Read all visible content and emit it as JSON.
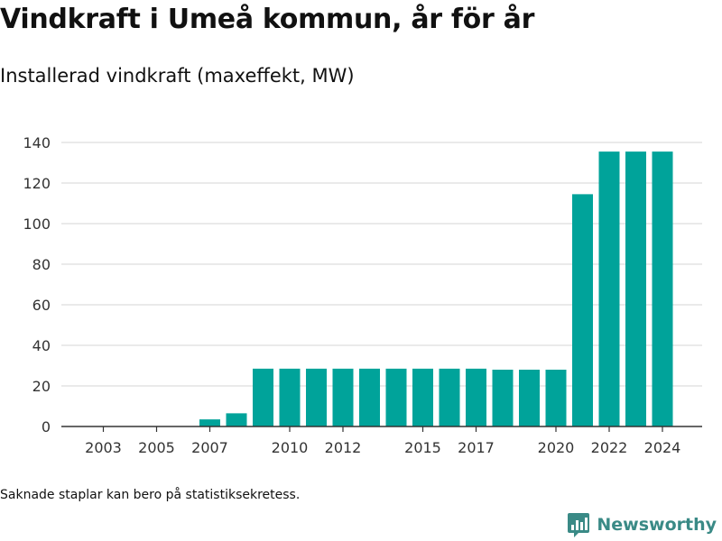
{
  "title": "Vindkraft i Umeå kommun, år för år",
  "subtitle": "Installerad vindkraft (maxeffekt, MW)",
  "footnote": "Saknade staplar kan bero på statistiksekretess.",
  "brand": "Newsworthy",
  "colors": {
    "bar": "#00a39a",
    "grid": "#dddddd",
    "axis": "#333333",
    "brand": "#3a8a86"
  },
  "chart_data": {
    "type": "bar",
    "x": [
      2002,
      2003,
      2004,
      2005,
      2006,
      2007,
      2008,
      2009,
      2010,
      2011,
      2012,
      2013,
      2014,
      2015,
      2016,
      2017,
      2018,
      2019,
      2020,
      2021,
      2022,
      2023,
      2024
    ],
    "values": [
      0,
      0,
      0,
      0,
      0,
      3.5,
      6.5,
      28.5,
      28.5,
      28.5,
      28.5,
      28.5,
      28.5,
      28.5,
      28.5,
      28.5,
      28,
      28,
      28,
      114.5,
      135.5,
      135.5,
      135.5
    ],
    "x_ticks": [
      "2003",
      "2005",
      "2007",
      "2010",
      "2012",
      "2015",
      "2017",
      "2020",
      "2022",
      "2024"
    ],
    "y_ticks": [
      0,
      20,
      40,
      60,
      80,
      100,
      120,
      140
    ],
    "ylim": [
      0,
      140
    ],
    "grid": true
  }
}
